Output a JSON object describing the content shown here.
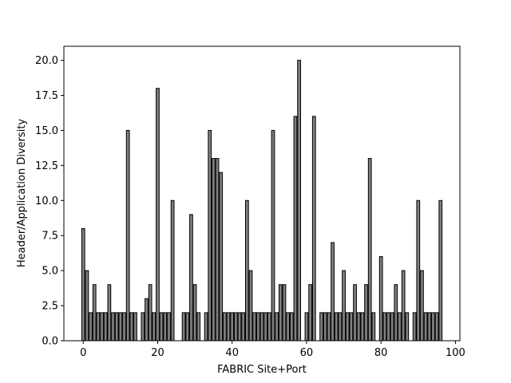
{
  "chart_data": {
    "type": "bar",
    "x_label": "FABRIC Site+Port",
    "y_label": "Header/Application Diversity",
    "x": [
      0,
      1,
      2,
      3,
      4,
      5,
      6,
      7,
      8,
      9,
      10,
      11,
      12,
      13,
      14,
      16,
      17,
      18,
      19,
      20,
      21,
      22,
      23,
      24,
      27,
      28,
      29,
      30,
      31,
      33,
      34,
      35,
      36,
      37,
      38,
      39,
      40,
      41,
      42,
      43,
      44,
      45,
      46,
      47,
      48,
      49,
      50,
      51,
      52,
      53,
      54,
      55,
      56,
      57,
      58,
      60,
      61,
      62,
      64,
      65,
      66,
      67,
      68,
      69,
      70,
      71,
      72,
      73,
      74,
      75,
      76,
      77,
      78,
      80,
      81,
      82,
      83,
      84,
      85,
      86,
      87,
      89,
      90,
      91,
      92,
      93,
      94,
      95,
      96
    ],
    "values": [
      8,
      5,
      2,
      4,
      2,
      2,
      2,
      4,
      2,
      2,
      2,
      2,
      15,
      2,
      2,
      2,
      3,
      4,
      2,
      18,
      2,
      2,
      2,
      10,
      2,
      2,
      9,
      4,
      2,
      2,
      15,
      13,
      13,
      12,
      2,
      2,
      2,
      2,
      2,
      2,
      10,
      5,
      2,
      2,
      2,
      2,
      2,
      15,
      2,
      4,
      4,
      2,
      2,
      16,
      20,
      2,
      4,
      16,
      2,
      2,
      2,
      7,
      2,
      2,
      5,
      2,
      2,
      4,
      2,
      2,
      4,
      13,
      2,
      6,
      2,
      2,
      2,
      4,
      2,
      5,
      2,
      2,
      10,
      5,
      2,
      2,
      2,
      2,
      10
    ],
    "color": "#808080",
    "edgecolor": "#000000",
    "xlim": [
      -5.2,
      101.2
    ],
    "ylim": [
      0,
      21
    ],
    "xticks": [
      0,
      20,
      40,
      60,
      80,
      100
    ],
    "yticks": [
      {
        "value": 0,
        "label": "0.0"
      },
      {
        "value": 2.5,
        "label": "2.5"
      },
      {
        "value": 5,
        "label": "5.0"
      },
      {
        "value": 7.5,
        "label": "7.5"
      },
      {
        "value": 10,
        "label": "10.0"
      },
      {
        "value": 12.5,
        "label": "12.5"
      },
      {
        "value": 15,
        "label": "15.0"
      },
      {
        "value": 17.5,
        "label": "17.5"
      },
      {
        "value": 20,
        "label": "20.0"
      }
    ]
  }
}
